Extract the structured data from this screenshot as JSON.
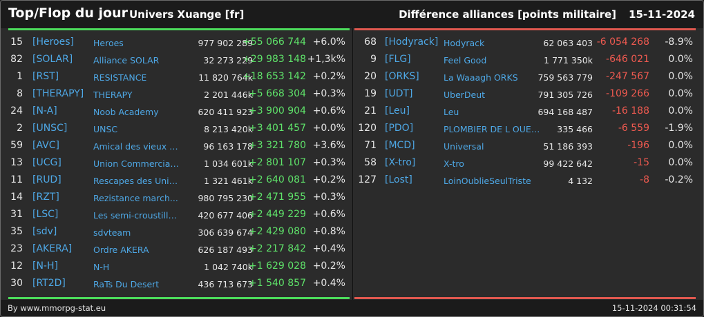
{
  "header": {
    "title": "Top/Flop du jour",
    "universe": "Univers Xuange [fr]",
    "subtitle": "Différence alliances [points militaire]",
    "date": "15-11-2024"
  },
  "top": [
    {
      "rank": "15",
      "tag": "[Heroes]",
      "name": "Heroes",
      "points": "977 902 289",
      "diff": "+55 066 744",
      "pct": "+6.0%"
    },
    {
      "rank": "82",
      "tag": "[SOLAR]",
      "name": "Alliance SOLAR",
      "points": "32 273 229",
      "diff": "+29 983 148",
      "pct": "+1,3k%"
    },
    {
      "rank": "1",
      "tag": "[RST]",
      "name": "RESISTANCE",
      "points": "11 820 764k",
      "diff": "+18 653 142",
      "pct": "+0.2%"
    },
    {
      "rank": "8",
      "tag": "[THERAPY]",
      "name": "THERAPY",
      "points": "2 201 446k",
      "diff": "+5 668 304",
      "pct": "+0.3%"
    },
    {
      "rank": "24",
      "tag": "[N-A]",
      "name": "Noob Academy",
      "points": "620 411 923",
      "diff": "+3 900 904",
      "pct": "+0.6%"
    },
    {
      "rank": "2",
      "tag": "[UNSC]",
      "name": "UNSC",
      "points": "8 213 420k",
      "diff": "+3 401 457",
      "pct": "+0.0%"
    },
    {
      "rank": "59",
      "tag": "[AVC]",
      "name": "Amical des vieux co...",
      "points": "96 163 178",
      "diff": "+3 321 780",
      "pct": "+3.6%"
    },
    {
      "rank": "13",
      "tag": "[UCG]",
      "name": "Union Commerciale...",
      "points": "1 034 601k",
      "diff": "+2 801 107",
      "pct": "+0.3%"
    },
    {
      "rank": "11",
      "tag": "[RUD]",
      "name": "Rescapes des Univ...",
      "points": "1 321 461k",
      "diff": "+2 640 081",
      "pct": "+0.2%"
    },
    {
      "rank": "14",
      "tag": "[RZT]",
      "name": "Rezistance march...",
      "points": "980 795 230",
      "diff": "+2 471 955",
      "pct": "+0.3%"
    },
    {
      "rank": "31",
      "tag": "[LSC]",
      "name": "Les semi-croustilla...",
      "points": "420 677 406",
      "diff": "+2 449 229",
      "pct": "+0.6%"
    },
    {
      "rank": "35",
      "tag": "[sdv]",
      "name": "sdvteam",
      "points": "306 639 674",
      "diff": "+2 429 080",
      "pct": "+0.8%"
    },
    {
      "rank": "23",
      "tag": "[AKERA]",
      "name": "Ordre AKERA",
      "points": "626 187 493",
      "diff": "+2 217 842",
      "pct": "+0.4%"
    },
    {
      "rank": "12",
      "tag": "[N-H]",
      "name": "N-H",
      "points": "1 042 740k",
      "diff": "+1 629 028",
      "pct": "+0.2%"
    },
    {
      "rank": "30",
      "tag": "[RT2D]",
      "name": "RaTs Du Desert",
      "points": "436 713 673",
      "diff": "+1 540 857",
      "pct": "+0.4%"
    }
  ],
  "flop": [
    {
      "rank": "68",
      "tag": "[Hodyrack]",
      "name": "Hodyrack",
      "points": "62 063 403",
      "diff": "-6 054 268",
      "pct": "-8.9%"
    },
    {
      "rank": "9",
      "tag": "[FLG]",
      "name": "Feel Good",
      "points": "1 771 350k",
      "diff": "-646 021",
      "pct": "0.0%"
    },
    {
      "rank": "20",
      "tag": "[ORKS]",
      "name": "La Waaagh ORKS",
      "points": "759 563 779",
      "diff": "-247 567",
      "pct": "0.0%"
    },
    {
      "rank": "19",
      "tag": "[UDT]",
      "name": "UberDeut",
      "points": "791 305 726",
      "diff": "-109 266",
      "pct": "0.0%"
    },
    {
      "rank": "21",
      "tag": "[Leu]",
      "name": "Leu",
      "points": "694 168 487",
      "diff": "-16 188",
      "pct": "0.0%"
    },
    {
      "rank": "120",
      "tag": "[PDO]",
      "name": "PLOMBIER DE L OUEST",
      "points": "335 466",
      "diff": "-6 559",
      "pct": "-1.9%"
    },
    {
      "rank": "71",
      "tag": "[MCD]",
      "name": "Universal",
      "points": "51 186 393",
      "diff": "-196",
      "pct": "0.0%"
    },
    {
      "rank": "58",
      "tag": "[X-tro]",
      "name": "X-tro",
      "points": "99 422 642",
      "diff": "-15",
      "pct": "0.0%"
    },
    {
      "rank": "127",
      "tag": "[Lost]",
      "name": "LoinOublieSeulTriste",
      "points": "4 132",
      "diff": "-8",
      "pct": "-0.2%"
    }
  ],
  "footer": {
    "credit": "By www.mmorpg-stat.eu",
    "timestamp": "15-11-2024 00:31:54"
  },
  "colors": {
    "top_accent": "#4cdb5b",
    "flop_accent": "#e0584f",
    "tag_link": "#4ea8e6",
    "positive": "#5fe36a",
    "negative": "#ef5a50"
  }
}
